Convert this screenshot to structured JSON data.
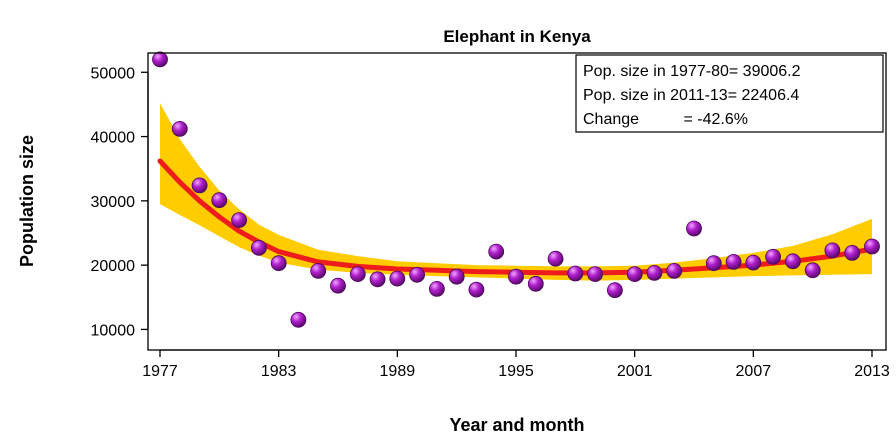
{
  "chart_data": {
    "type": "scatter",
    "title": "Elephant in Kenya",
    "xlabel": "Year and month",
    "ylabel": "Population size",
    "xlim": [
      1977,
      2013
    ],
    "ylim": [
      10000,
      50000
    ],
    "x_ticks": [
      1977,
      1983,
      1989,
      1995,
      2001,
      2007,
      2013
    ],
    "y_ticks": [
      10000,
      20000,
      30000,
      40000,
      50000
    ],
    "grid": false,
    "legend_position": "top-right",
    "legend_lines": [
      "Pop. size in 1977-80= 39006.2",
      "Pop. size in 2011-13= 22406.4",
      "Change          = -42.6%"
    ],
    "colors": {
      "points": "#9b12b0",
      "trend": "#ee1c1c",
      "band": "#ffcc00"
    },
    "series": [
      {
        "type": "scatter",
        "x": [
          1977,
          1978,
          1979,
          1980,
          1981,
          1982,
          1983,
          1984,
          1985,
          1986,
          1987,
          1988,
          1989,
          1990,
          1991,
          1992,
          1993,
          1994,
          1995,
          1996,
          1997,
          1998,
          1999,
          2000,
          2001,
          2002,
          2003,
          2004,
          2005,
          2006,
          2007,
          2008,
          2009,
          2010,
          2011,
          2012,
          2013
        ],
        "y": [
          52000,
          41200,
          32400,
          30100,
          27000,
          22700,
          20300,
          11500,
          19100,
          16800,
          18600,
          17800,
          17900,
          18500,
          16300,
          18200,
          16200,
          22100,
          18200,
          17100,
          21000,
          18700,
          18600,
          16100,
          18600,
          18800,
          19100,
          25700,
          20300,
          20500,
          20400,
          21300,
          20600,
          19200,
          22300,
          21900,
          22900
        ]
      },
      {
        "type": "line",
        "x": [
          1977,
          1978,
          1979,
          1980,
          1981,
          1982,
          1983,
          1985,
          1987,
          1989,
          1991,
          1993,
          1995,
          1997,
          1999,
          2001,
          2003,
          2005,
          2007,
          2009,
          2011,
          2013
        ],
        "y": [
          36200,
          32900,
          30000,
          27500,
          25300,
          23600,
          22100,
          20500,
          19800,
          19400,
          19200,
          19000,
          18900,
          18800,
          18800,
          18900,
          19200,
          19600,
          20000,
          20600,
          21400,
          22500
        ]
      },
      {
        "type": "band",
        "x": [
          1977,
          1978,
          1979,
          1980,
          1981,
          1982,
          1983,
          1985,
          1987,
          1989,
          1991,
          1993,
          1995,
          1997,
          1999,
          2001,
          2003,
          2005,
          2007,
          2009,
          2011,
          2013
        ],
        "lower": [
          29500,
          27800,
          26200,
          24500,
          22800,
          21500,
          20400,
          19300,
          18800,
          18500,
          18300,
          18100,
          17900,
          17700,
          17600,
          17700,
          17900,
          18100,
          18300,
          18400,
          18500,
          18600
        ],
        "upper": [
          45200,
          39600,
          35300,
          31600,
          28700,
          26300,
          24700,
          22400,
          21400,
          20600,
          20300,
          20000,
          19900,
          19800,
          19800,
          19900,
          20400,
          21100,
          21900,
          23000,
          24800,
          27200
        ]
      }
    ]
  }
}
